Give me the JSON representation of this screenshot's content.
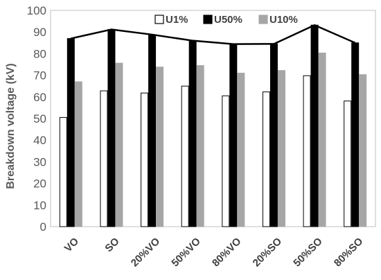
{
  "chart_data": {
    "type": "bar",
    "ylabel": "Breakdown voltage (kV)",
    "ylim": [
      0,
      100
    ],
    "yticks": [
      0,
      10,
      20,
      30,
      40,
      50,
      60,
      70,
      80,
      90,
      100
    ],
    "categories": [
      "VO",
      "SO",
      "20%VO",
      "50%VO",
      "80%VO",
      "20%SO",
      "50%SO",
      "80%SO"
    ],
    "series": [
      {
        "name": "U1%",
        "values": [
          50.5,
          62.8,
          61.8,
          65.0,
          60.5,
          62.3,
          69.8,
          58.1
        ],
        "fill": "#ffffff",
        "stroke": "#000000"
      },
      {
        "name": "U50%",
        "values": [
          87.0,
          91.2,
          88.8,
          86.0,
          84.4,
          84.5,
          93.2,
          85.0
        ],
        "fill": "#000000",
        "stroke": "#000000"
      },
      {
        "name": "U10%",
        "values": [
          67.0,
          75.6,
          73.8,
          74.5,
          71.0,
          72.2,
          80.3,
          70.3
        ],
        "fill": "#a6a6a6",
        "stroke": "#a6a6a6"
      }
    ],
    "line_series": {
      "source": "U50%",
      "color": "#000000"
    },
    "legend": "top-center",
    "grid": false
  }
}
